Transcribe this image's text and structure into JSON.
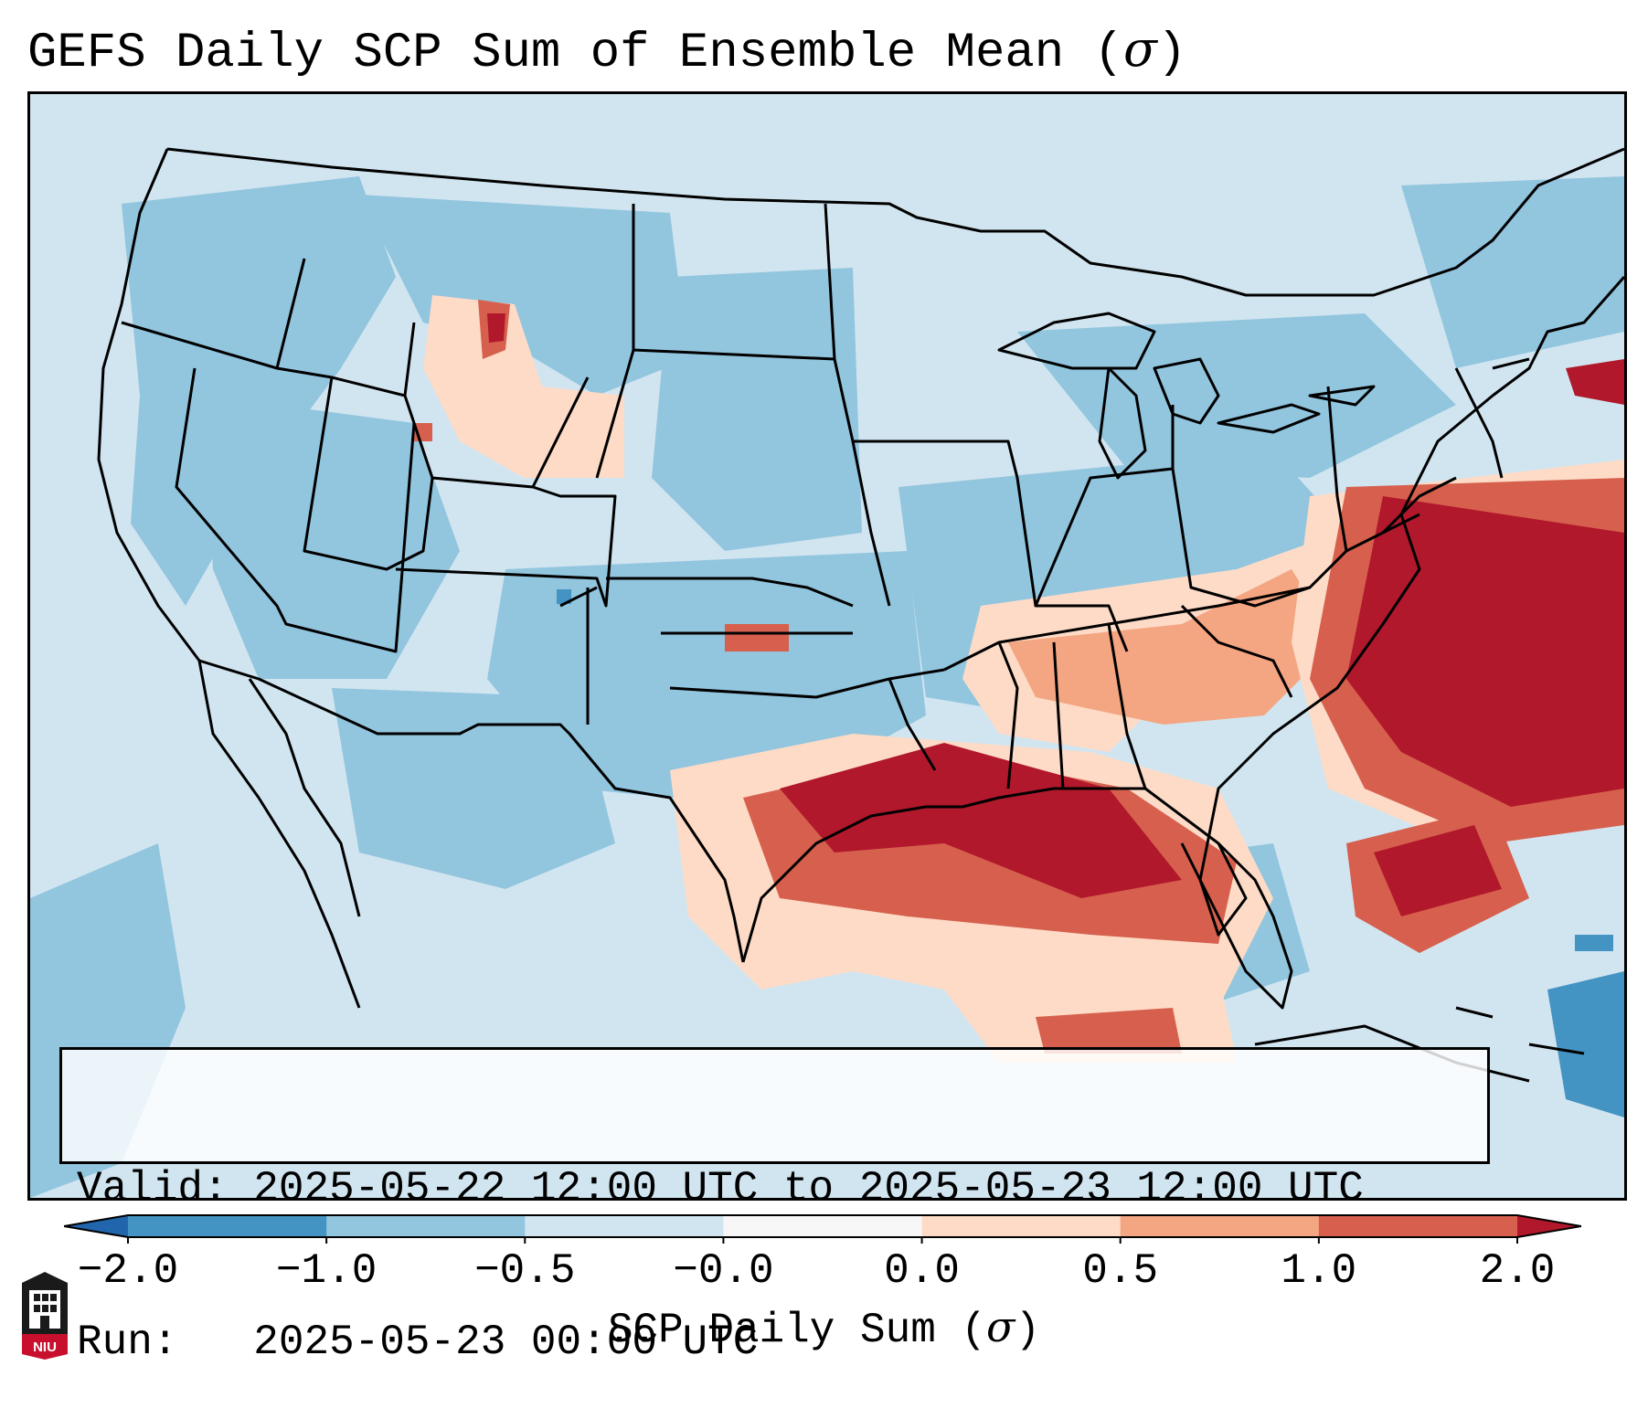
{
  "title": "GEFS Daily SCP Sum of Ensemble Mean (",
  "title_symbol": "σ",
  "title_close": ")",
  "info": {
    "valid_label": "Valid:",
    "valid_text": "2025-05-22 12:00 UTC to 2025-05-23 12:00 UTC",
    "run_label": "Run:",
    "run_text": "2025-05-23 00:00 UTC"
  },
  "colorbar": {
    "label": "SCP Daily Sum (",
    "label_symbol": "σ",
    "label_close": ")",
    "ticks": [
      "−2.0",
      "−1.0",
      "−0.5",
      "−0.0",
      "0.0",
      "0.5",
      "1.0",
      "2.0"
    ],
    "bins": [
      {
        "range": "< -2.0",
        "color": "#2166ac"
      },
      {
        "range": "-2.0 to -1.0",
        "color": "#4393c3"
      },
      {
        "range": "-1.0 to -0.5",
        "color": "#92c5de"
      },
      {
        "range": "-0.5 to -0.0",
        "color": "#d1e5f0"
      },
      {
        "range": "-0.0 to 0.0",
        "color": "#f7f7f7"
      },
      {
        "range": "0.0 to 0.5",
        "color": "#fddbc7"
      },
      {
        "range": "0.5 to 1.0",
        "color": "#f4a582"
      },
      {
        "range": "1.0 to 2.0",
        "color": "#d6604d"
      },
      {
        "range": "> 2.0",
        "color": "#b2182b"
      }
    ]
  },
  "logo_text": "NIU",
  "colors": {
    "base": "#d1e5f0",
    "mid_blue": "#92c5de",
    "deep_blue": "#4393c3",
    "light_red": "#fddbc7",
    "mid_red": "#d6604d",
    "deep_red": "#b2182b"
  }
}
